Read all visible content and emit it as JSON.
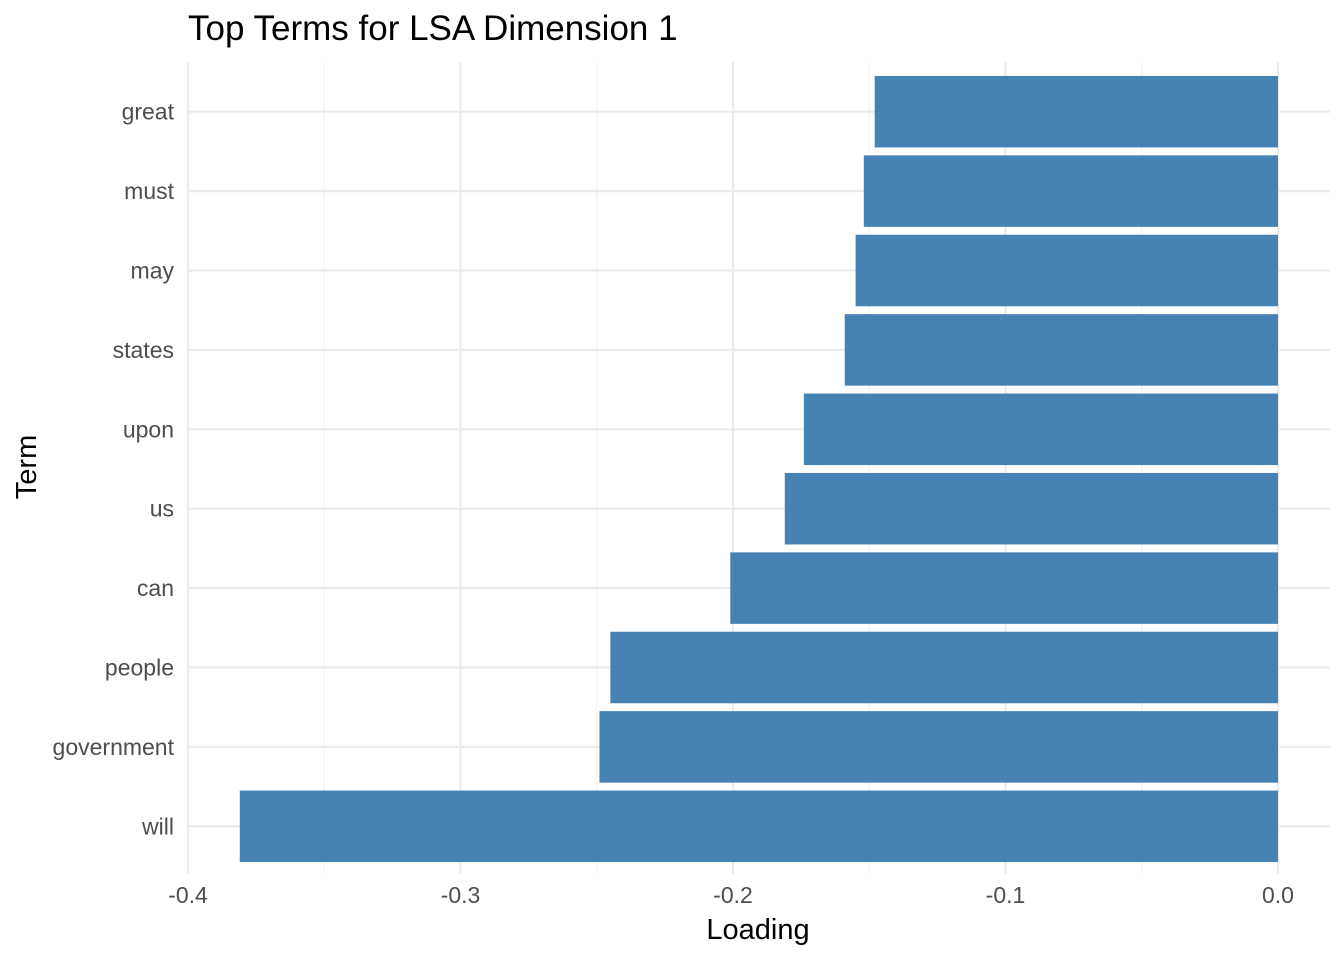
{
  "chart_data": {
    "type": "bar",
    "orientation": "horizontal",
    "title": "Top Terms for LSA Dimension 1",
    "xlabel": "Loading",
    "ylabel": "Term",
    "categories": [
      "great",
      "must",
      "may",
      "states",
      "upon",
      "us",
      "can",
      "people",
      "government",
      "will"
    ],
    "values": [
      -0.148,
      -0.152,
      -0.155,
      -0.159,
      -0.174,
      -0.181,
      -0.201,
      -0.245,
      -0.249,
      -0.381
    ],
    "xlim": [
      -0.4,
      0.0
    ],
    "x_ticks": [
      -0.4,
      -0.3,
      -0.2,
      -0.1,
      0.0
    ],
    "x_tick_labels": [
      "-0.4",
      "-0.3",
      "-0.2",
      "-0.1",
      "0.0"
    ],
    "bar_color": "#4682b4",
    "grid": true,
    "legend": "none"
  }
}
